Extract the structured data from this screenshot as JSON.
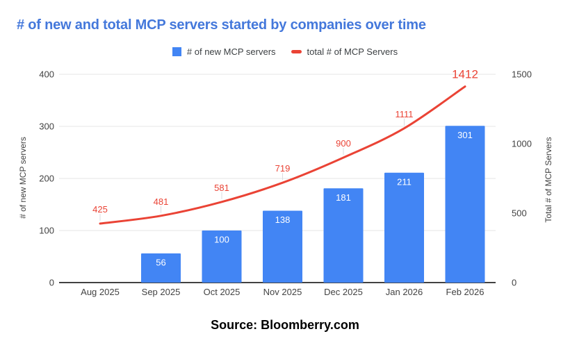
{
  "chart_data": {
    "type": "combo",
    "title": "# of new and total MCP servers started by companies over time",
    "categories": [
      "Aug 2025",
      "Sep 2025",
      "Oct 2025",
      "Nov 2025",
      "Dec 2025",
      "Jan 2026",
      "Feb 2026"
    ],
    "series": [
      {
        "name": "# of new MCP servers",
        "type": "bar",
        "axis": "left",
        "color": "#4285f4",
        "values": [
          null,
          56,
          100,
          138,
          181,
          211,
          301
        ]
      },
      {
        "name": "total # of MCP Servers",
        "type": "line",
        "axis": "right",
        "color": "#ea4335",
        "values": [
          425,
          481,
          581,
          719,
          900,
          1111,
          1412
        ]
      }
    ],
    "left_axis": {
      "label": "# of new MCP servers",
      "ticks": [
        0,
        100,
        200,
        300,
        400
      ],
      "range": [
        0,
        400
      ]
    },
    "right_axis": {
      "label": "Total # of MCP Servers",
      "ticks": [
        0,
        500,
        1000,
        1500
      ],
      "range": [
        0,
        1500
      ]
    },
    "legend_position": "top",
    "grid": true
  },
  "source": {
    "text": "Source: Bloomberry.com"
  },
  "colors": {
    "title": "#4478db",
    "axis_text": "#424242",
    "grid": "#e6e6e6",
    "baseline": "#424242",
    "bar_label": "#ffffff",
    "callout": "#dadce0",
    "background": "#ffffff"
  }
}
